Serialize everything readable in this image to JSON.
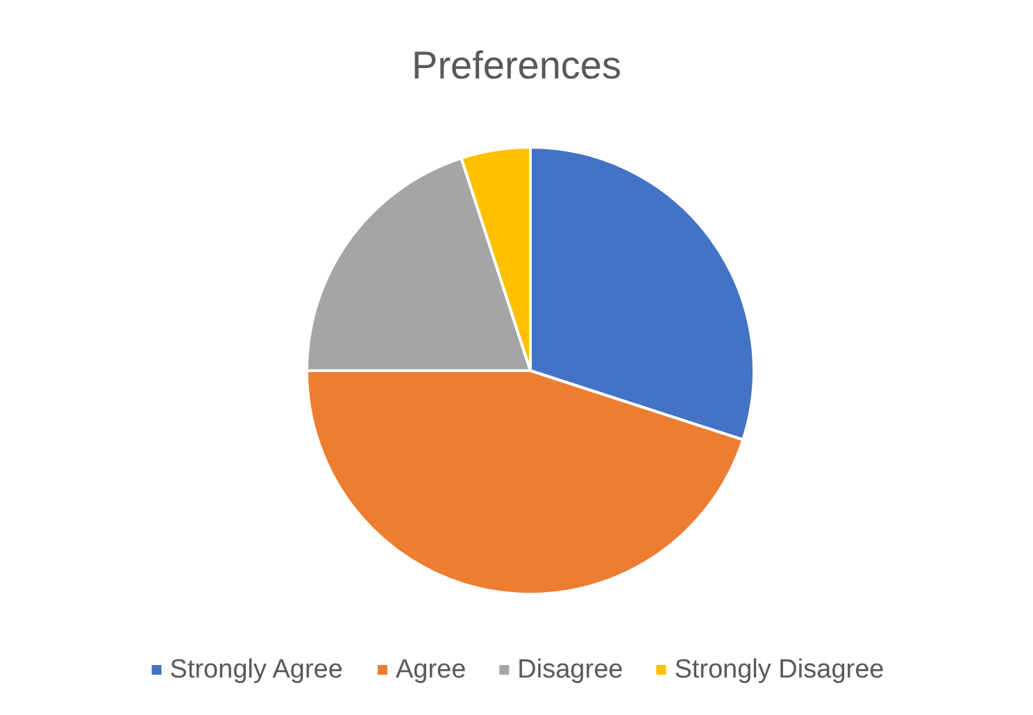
{
  "chart_data": {
    "type": "pie",
    "title": "Preferences",
    "categories": [
      "Strongly Agree",
      "Agree",
      "Disagree",
      "Strongly Disagree"
    ],
    "values": [
      30,
      45,
      20,
      5
    ],
    "colors": [
      "#4472c4",
      "#ed7d31",
      "#a5a5a5",
      "#ffc000"
    ],
    "legend": "bottom"
  }
}
